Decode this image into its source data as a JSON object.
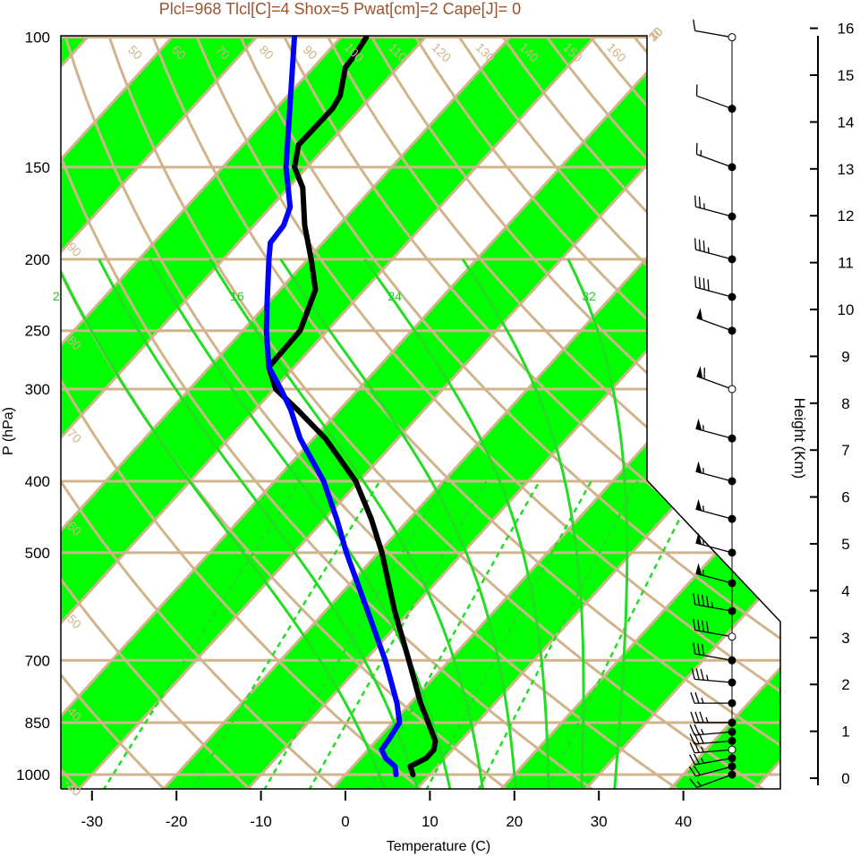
{
  "title_stats": "Plcl=968 Tlcl[C]=4 Shox=5 Pwat[cm]=2 Cape[J]= 0",
  "colors": {
    "band_green": "#00ff00",
    "isobar_tan": "#d2b48c",
    "mixing_ratio_green": "#22dd22",
    "temperature": "#000000",
    "dewpoint": "#0000ff"
  },
  "chart_data": {
    "type": "line",
    "subtype": "skew-t log-p diagram",
    "xlabel": "Temperature (C)",
    "ylabel": "P (hPa)",
    "y2label": "Height (Km)",
    "xlim": [
      -34,
      52
    ],
    "ylim": [
      1050,
      100
    ],
    "x_ticks": [
      "-30",
      "-20",
      "-10",
      "0",
      "10",
      "20",
      "30",
      "40"
    ],
    "x_tick_values": [
      -30,
      -20,
      -10,
      0,
      10,
      20,
      30,
      40
    ],
    "y_ticks": [
      "100",
      "150",
      "200",
      "250",
      "300",
      "400",
      "500",
      "700",
      "850",
      "1000"
    ],
    "y_tick_values": [
      100,
      150,
      200,
      250,
      300,
      400,
      500,
      700,
      850,
      1000
    ],
    "height_ticks": [
      "0",
      "1",
      "2",
      "3",
      "4",
      "5",
      "6",
      "7",
      "8",
      "9",
      "10",
      "11",
      "12",
      "13",
      "14",
      "15",
      "16"
    ],
    "isotherm_labels": [
      {
        "text": "-30",
        "t": -30
      },
      {
        "text": "-20",
        "t": -20
      },
      {
        "text": "-10",
        "t": -10
      },
      {
        "text": "0",
        "t": 0
      },
      {
        "text": "10",
        "t": 10
      },
      {
        "text": "20",
        "t": 20
      },
      {
        "text": "30",
        "t": 30
      },
      {
        "text": "-40",
        "t": -40
      },
      {
        "text": "-50",
        "t": -50
      },
      {
        "text": "-60",
        "t": -60
      },
      {
        "text": "-70",
        "t": -70
      },
      {
        "text": "-80",
        "t": -80
      },
      {
        "text": "-90",
        "t": -90
      }
    ],
    "theta_labels": [
      "50",
      "60",
      "70",
      "80",
      "90",
      "100",
      "110",
      "120",
      "130",
      "140",
      "150",
      "160"
    ],
    "mixing_ratio_labels": [
      "2",
      "16",
      "24",
      "32"
    ],
    "series": [
      {
        "name": "temperature",
        "p": [
          1000,
          975,
          950,
          925,
          900,
          850,
          800,
          700,
          600,
          500,
          450,
          400,
          350,
          320,
          300,
          280,
          250,
          220,
          200,
          180,
          160,
          150,
          140,
          125,
          120,
          110,
          105,
          100
        ],
        "t": [
          8.0,
          6.8,
          7.8,
          7.8,
          7.0,
          4.2,
          1.2,
          -4.8,
          -11.8,
          -19.6,
          -24.5,
          -30.4,
          -38.6,
          -45.0,
          -49.8,
          -53.0,
          -53.2,
          -55.8,
          -59.6,
          -64.0,
          -68.3,
          -71.5,
          -73.4,
          -73.3,
          -73.8,
          -76.2,
          -76.5,
          -77.0
        ]
      },
      {
        "name": "dewpoint",
        "p": [
          1000,
          975,
          950,
          925,
          900,
          850,
          800,
          700,
          600,
          500,
          450,
          400,
          350,
          320,
          300,
          280,
          250,
          230,
          200,
          190,
          180,
          170,
          150,
          100
        ],
        "t": [
          6.0,
          5.0,
          3.0,
          1.6,
          1.4,
          0.8,
          -1.6,
          -7.6,
          -15.0,
          -23.8,
          -28.6,
          -34.2,
          -41.6,
          -45.8,
          -49.2,
          -53.0,
          -57.2,
          -60.0,
          -64.6,
          -66.2,
          -66.5,
          -67.7,
          -72.5,
          -85.5
        ]
      }
    ],
    "wind": {
      "p": [
        1000,
        975,
        950,
        925,
        900,
        875,
        850,
        800,
        750,
        700,
        650,
        600,
        550,
        500,
        450,
        400,
        350,
        300,
        250,
        225,
        200,
        175,
        150,
        125,
        100
      ],
      "dir": [
        250,
        255,
        260,
        265,
        265,
        265,
        270,
        270,
        275,
        280,
        280,
        280,
        285,
        285,
        285,
        285,
        285,
        290,
        290,
        285,
        285,
        285,
        290,
        290,
        280
      ],
      "spd": [
        15,
        20,
        25,
        25,
        30,
        25,
        35,
        25,
        35,
        30,
        40,
        45,
        55,
        55,
        55,
        55,
        55,
        60,
        50,
        40,
        35,
        25,
        15,
        10,
        10
      ]
    }
  }
}
